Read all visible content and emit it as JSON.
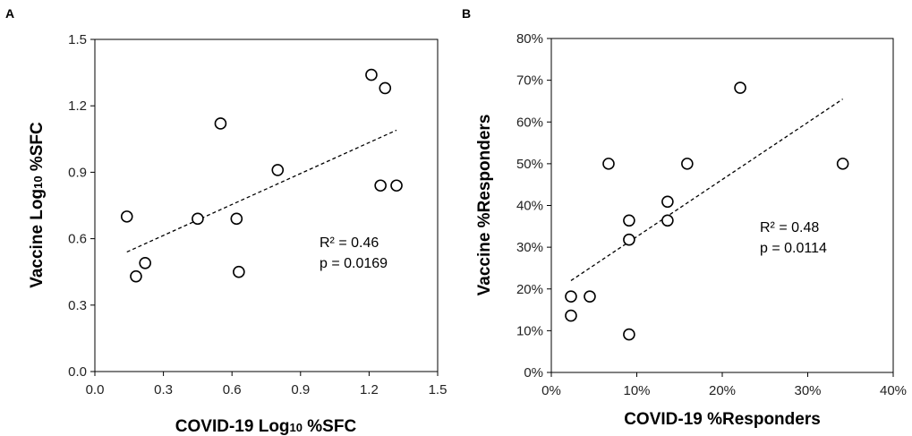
{
  "chart_data": [
    {
      "type": "scatter",
      "panel_label": "A",
      "xlabel": "COVID-19 Log₁₀ %SFC",
      "ylabel": "Vaccine Log₁₀ %SFC",
      "xlim": [
        0,
        1.5
      ],
      "ylim": [
        0,
        1.5
      ],
      "x_ticks": [
        "0.0",
        "0.3",
        "0.6",
        "0.9",
        "1.2",
        "1.5"
      ],
      "y_ticks": [
        "0.0",
        "0.3",
        "0.6",
        "0.9",
        "1.2",
        "1.5"
      ],
      "x_tick_values": [
        0,
        0.3,
        0.6,
        0.9,
        1.2,
        1.5
      ],
      "y_tick_values": [
        0,
        0.3,
        0.6,
        0.9,
        1.2,
        1.5
      ],
      "points": [
        {
          "x": 0.14,
          "y": 0.7
        },
        {
          "x": 0.18,
          "y": 0.43
        },
        {
          "x": 0.22,
          "y": 0.49
        },
        {
          "x": 0.45,
          "y": 0.69
        },
        {
          "x": 0.55,
          "y": 1.12
        },
        {
          "x": 0.62,
          "y": 0.69
        },
        {
          "x": 0.63,
          "y": 0.45
        },
        {
          "x": 0.8,
          "y": 0.91
        },
        {
          "x": 1.21,
          "y": 1.34
        },
        {
          "x": 1.25,
          "y": 0.84
        },
        {
          "x": 1.27,
          "y": 1.28
        },
        {
          "x": 1.32,
          "y": 0.84
        }
      ],
      "trendline": {
        "x": [
          0.14,
          1.32
        ],
        "y": [
          0.54,
          1.09
        ]
      },
      "annotations": [
        "R² = 0.46",
        "p = 0.0169"
      ],
      "grid": false
    },
    {
      "type": "scatter",
      "panel_label": "B",
      "xlabel": "COVID-19 %Responders",
      "ylabel": "Vaccine %Responders",
      "xlim": [
        0,
        40
      ],
      "ylim": [
        0,
        80
      ],
      "x_ticks": [
        "0%",
        "10%",
        "20%",
        "30%",
        "40%"
      ],
      "y_ticks": [
        "0%",
        "10%",
        "20%",
        "30%",
        "40%",
        "50%",
        "60%",
        "70%",
        "80%"
      ],
      "x_tick_values": [
        0,
        10,
        20,
        30,
        40
      ],
      "y_tick_values": [
        0,
        10,
        20,
        30,
        40,
        50,
        60,
        70,
        80
      ],
      "points": [
        {
          "x": 2.3,
          "y": 18.2
        },
        {
          "x": 2.3,
          "y": 13.6
        },
        {
          "x": 4.5,
          "y": 18.2
        },
        {
          "x": 6.7,
          "y": 50.0
        },
        {
          "x": 9.1,
          "y": 36.4
        },
        {
          "x": 9.1,
          "y": 31.8
        },
        {
          "x": 9.1,
          "y": 9.1
        },
        {
          "x": 13.6,
          "y": 40.9
        },
        {
          "x": 13.6,
          "y": 36.4
        },
        {
          "x": 15.9,
          "y": 50.0
        },
        {
          "x": 22.1,
          "y": 68.2
        },
        {
          "x": 34.1,
          "y": 50.0
        }
      ],
      "trendline": {
        "x": [
          2.3,
          34.1
        ],
        "y": [
          22.0,
          65.5
        ]
      },
      "annotations": [
        "R² = 0.48",
        "p = 0.0114"
      ],
      "grid": false
    }
  ]
}
